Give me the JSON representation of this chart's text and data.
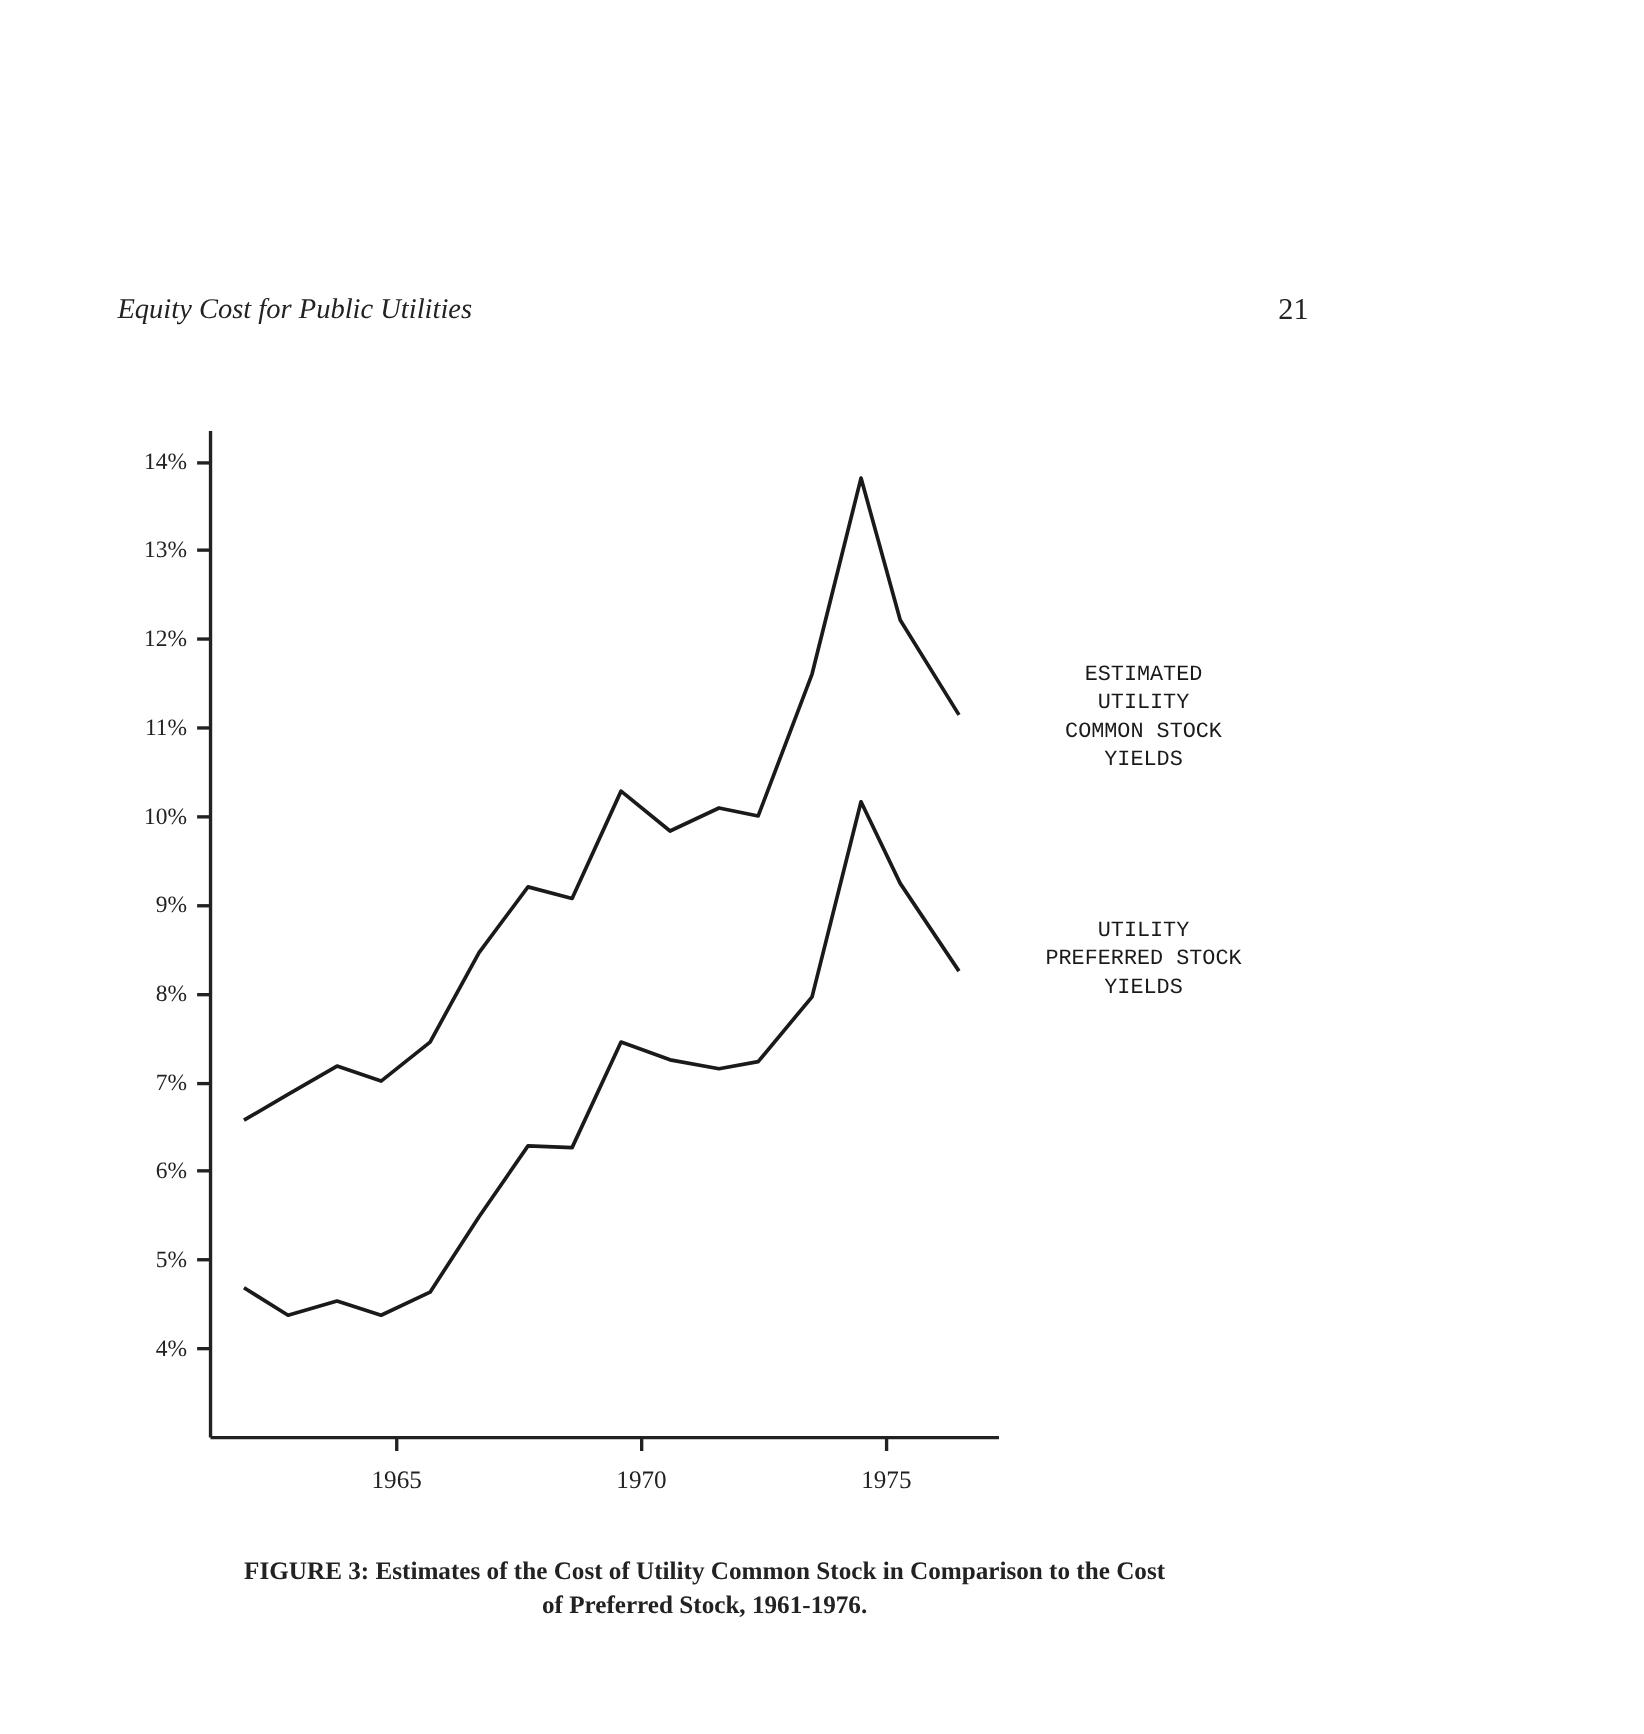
{
  "chart_data": {
    "type": "line",
    "title": "FIGURE 3: Estimates of the Cost of Utility Common Stock in Comparison to the Cost of Preferred Stock, 1961-1976.",
    "annotations": [
      "Equity Cost for Public Utilities",
      "21"
    ],
    "x": [
      1961.9,
      1962.8,
      1963.8,
      1964.7,
      1965.7,
      1966.7,
      1967.7,
      1968.6,
      1969.6,
      1970.6,
      1971.6,
      1972.4,
      1973.5,
      1974.5,
      1975.3,
      1976.5
    ],
    "series": [
      {
        "name": "ESTIMATED\nUTILITY\nCOMMON STOCK\nYIELDS",
        "color": "#1a1a1a",
        "values": [
          6.57,
          6.86,
          7.18,
          7.01,
          7.45,
          8.46,
          9.2,
          9.07,
          10.28,
          9.83,
          10.09,
          10.0,
          11.6,
          13.81,
          12.21,
          11.14
        ]
      },
      {
        "name": "UTILITY\nPREFERRED STOCK\nYIELDS",
        "color": "#1a1a1a",
        "values": [
          4.68,
          4.37,
          4.53,
          4.37,
          4.63,
          5.48,
          6.28,
          6.26,
          7.45,
          7.25,
          7.15,
          7.23,
          7.96,
          10.16,
          9.24,
          8.25
        ]
      }
    ],
    "xlim": [
      1961.2,
      1977.3
    ],
    "xticks": [
      1965,
      1970,
      1975
    ],
    "ylim": [
      3,
      14.35
    ],
    "yticks": [
      {
        "value": 4,
        "label": "4%"
      },
      {
        "value": 5,
        "label": "5%"
      },
      {
        "value": 6,
        "label": "6%"
      },
      {
        "value": 7,
        "label": "7%"
      },
      {
        "value": 8,
        "label": "8%"
      },
      {
        "value": 9,
        "label": "9%"
      },
      {
        "value": 10,
        "label": "10%"
      },
      {
        "value": 11,
        "label": "11%"
      },
      {
        "value": 12,
        "label": "12%"
      },
      {
        "value": 13,
        "label": "13%"
      },
      {
        "value": 14,
        "label": "14%"
      }
    ],
    "grid": false,
    "marker": "none",
    "line_style": "solid"
  }
}
